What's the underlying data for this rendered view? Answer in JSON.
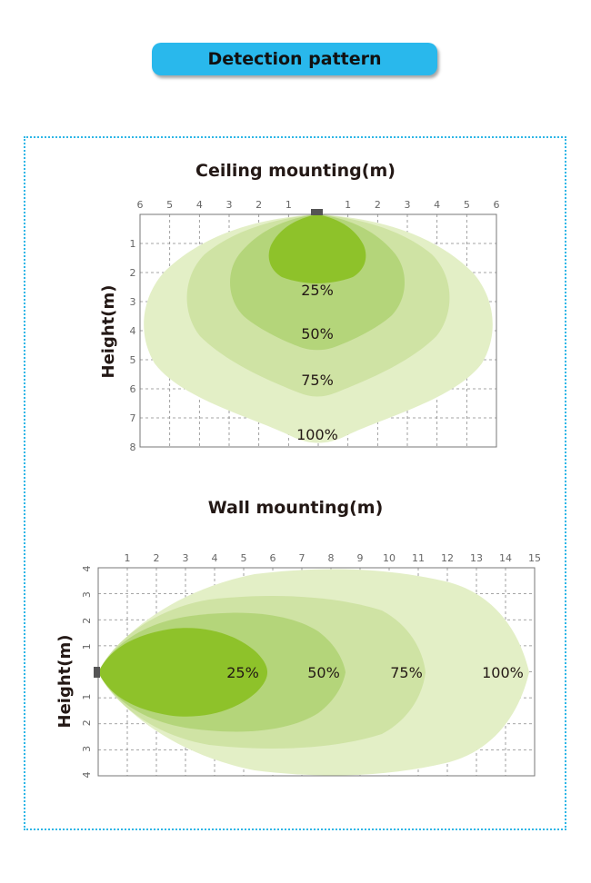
{
  "header": {
    "title": "Detection pattern"
  },
  "ceiling": {
    "title": "Ceiling mounting(m)",
    "y_label": "Height(m)",
    "x_ticks_left": [
      "6",
      "5",
      "4",
      "3",
      "2",
      "1"
    ],
    "x_ticks_right": [
      "1",
      "2",
      "3",
      "4",
      "5",
      "6"
    ],
    "y_ticks": [
      "1",
      "2",
      "3",
      "4",
      "5",
      "6",
      "7",
      "8"
    ],
    "zones": [
      {
        "label": "100%",
        "color": "#e3efc6"
      },
      {
        "label": "75%",
        "color": "#cfe3a4"
      },
      {
        "label": "50%",
        "color": "#b4d57a"
      },
      {
        "label": "25%",
        "color": "#8ec22a"
      }
    ]
  },
  "wall": {
    "title": "Wall mounting(m)",
    "y_label": "Height(m)",
    "x_ticks": [
      "1",
      "2",
      "3",
      "4",
      "5",
      "6",
      "7",
      "8",
      "9",
      "10",
      "11",
      "12",
      "13",
      "14",
      "15"
    ],
    "y_ticks_top": [
      "4",
      "3",
      "2",
      "1"
    ],
    "y_ticks_bottom": [
      "1",
      "2",
      "3",
      "4"
    ],
    "zones": [
      {
        "label": "100%",
        "color": "#e3efc6"
      },
      {
        "label": "75%",
        "color": "#cfe3a4"
      },
      {
        "label": "50%",
        "color": "#b4d57a"
      },
      {
        "label": "25%",
        "color": "#8ec22a"
      }
    ]
  },
  "sensor_color": "#555555",
  "grid_color": "#888888"
}
